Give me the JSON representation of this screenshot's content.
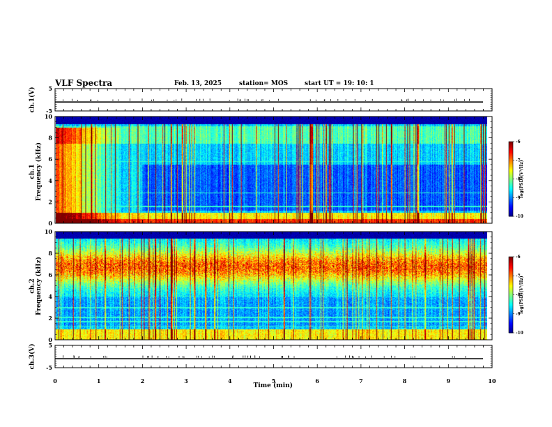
{
  "header": {
    "title": "VLF Spectra",
    "date": "Feb. 13, 2025",
    "station": "station= MOS",
    "start": "start  UT =   19: 10: 1"
  },
  "chart_data": [
    {
      "type": "line",
      "panel": "ch1-voltage",
      "ylabel": "ch.1(V)",
      "ylim": [
        -5,
        5
      ],
      "yticks": [
        "5",
        "-5"
      ],
      "xlim": [
        0,
        10
      ],
      "approx_level": -1
    },
    {
      "type": "heatmap",
      "panel": "ch1-spectrogram",
      "ylabel": "ch.1\nFrequency (kHz)",
      "ylim": [
        0,
        10
      ],
      "yticks": [
        "0",
        "2",
        "4",
        "6",
        "8",
        "10"
      ],
      "xlim": [
        0,
        10
      ],
      "colorbar": {
        "label": "log(PSD)(V²/Hz)",
        "range": [
          -10,
          -6
        ],
        "ticks": [
          "-6",
          "-7",
          "-8",
          "-9",
          "-10"
        ]
      },
      "description": "strong broadband 0-9 kHz for first ~1.5 min, then weaker with vertical spikes; low-frequency band 0-1 kHz"
    },
    {
      "type": "heatmap",
      "panel": "ch2-spectrogram",
      "ylabel": "ch.2\nFrequency (kHz)",
      "ylim": [
        0,
        10
      ],
      "yticks": [
        "0",
        "2",
        "4",
        "6",
        "8",
        "10"
      ],
      "xlim": [
        0,
        10
      ],
      "colorbar": {
        "label": "log(PSD)(V²/Hz)",
        "range": [
          -10,
          -6
        ],
        "ticks": [
          "-6",
          "-7",
          "-8",
          "-9",
          "-10"
        ]
      },
      "description": "strong band centered ~6-8 kHz throughout, weaker below 4 kHz"
    },
    {
      "type": "line",
      "panel": "ch3-voltage",
      "ylabel": "ch.3(V)",
      "ylim": [
        -5,
        5
      ],
      "yticks": [
        "5",
        "-5"
      ],
      "xlim": [
        0,
        10
      ],
      "approx_level": -1
    }
  ],
  "xaxis": {
    "label": "Time (min)",
    "ticks": [
      "0",
      "1",
      "2",
      "3",
      "4",
      "5",
      "6",
      "7",
      "8",
      "9",
      "10"
    ]
  }
}
